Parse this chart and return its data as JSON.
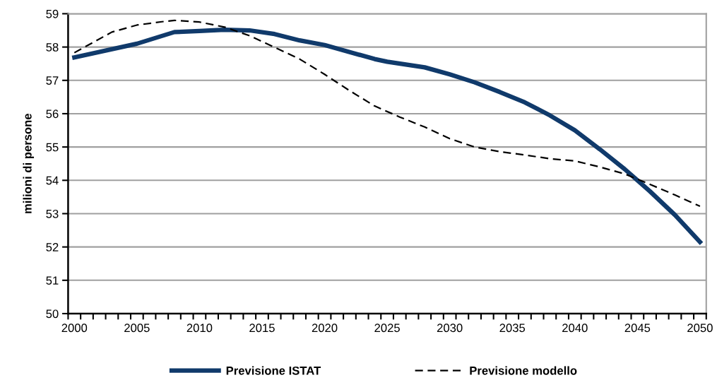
{
  "chart_data": {
    "type": "line",
    "ylabel": "milioni di persone",
    "xlim": [
      1999.5,
      2050.5
    ],
    "xticks": [
      {
        "value": 2000,
        "label": "2000"
      },
      {
        "value": 2005,
        "label": "2005"
      },
      {
        "value": 2010,
        "label": "2010"
      },
      {
        "value": 2015,
        "label": "2015"
      },
      {
        "value": 2020,
        "label": "2020"
      },
      {
        "value": 2025,
        "label": "2025"
      },
      {
        "value": 2030,
        "label": "2030"
      },
      {
        "value": 2035,
        "label": "2035"
      },
      {
        "value": 2040,
        "label": "2040"
      },
      {
        "value": 2045,
        "label": "2045"
      },
      {
        "value": 2050,
        "label": "2050"
      },
      {
        "value": 1999.5,
        "label": null
      },
      {
        "value": 2000.5,
        "label": null
      },
      {
        "value": 2001.5,
        "label": null
      },
      {
        "value": 2002.5,
        "label": null
      },
      {
        "value": 2003.5,
        "label": null
      },
      {
        "value": 2004.5,
        "label": null
      },
      {
        "value": 2005.5,
        "label": null
      },
      {
        "value": 2006.5,
        "label": null
      },
      {
        "value": 2007.5,
        "label": null
      },
      {
        "value": 2008.5,
        "label": null
      },
      {
        "value": 2009.5,
        "label": null
      },
      {
        "value": 2010.5,
        "label": null
      },
      {
        "value": 2011.5,
        "label": null
      },
      {
        "value": 2012.5,
        "label": null
      },
      {
        "value": 2013.5,
        "label": null
      },
      {
        "value": 2014.5,
        "label": null
      },
      {
        "value": 2015.5,
        "label": null
      },
      {
        "value": 2016.5,
        "label": null
      },
      {
        "value": 2017.5,
        "label": null
      },
      {
        "value": 2018.5,
        "label": null
      },
      {
        "value": 2019.5,
        "label": null
      },
      {
        "value": 2020.5,
        "label": null
      },
      {
        "value": 2021.5,
        "label": null
      },
      {
        "value": 2022.5,
        "label": null
      },
      {
        "value": 2023.5,
        "label": null
      },
      {
        "value": 2024.5,
        "label": null
      },
      {
        "value": 2025.5,
        "label": null
      },
      {
        "value": 2026.5,
        "label": null
      },
      {
        "value": 2027.5,
        "label": null
      },
      {
        "value": 2028.5,
        "label": null
      },
      {
        "value": 2029.5,
        "label": null
      },
      {
        "value": 2030.5,
        "label": null
      },
      {
        "value": 2031.5,
        "label": null
      },
      {
        "value": 2032.5,
        "label": null
      },
      {
        "value": 2033.5,
        "label": null
      },
      {
        "value": 2034.5,
        "label": null
      },
      {
        "value": 2035.5,
        "label": null
      },
      {
        "value": 2036.5,
        "label": null
      },
      {
        "value": 2037.5,
        "label": null
      },
      {
        "value": 2038.5,
        "label": null
      },
      {
        "value": 2039.5,
        "label": null
      },
      {
        "value": 2040.5,
        "label": null
      },
      {
        "value": 2041.5,
        "label": null
      },
      {
        "value": 2042.5,
        "label": null
      },
      {
        "value": 2043.5,
        "label": null
      },
      {
        "value": 2044.5,
        "label": null
      },
      {
        "value": 2045.5,
        "label": null
      },
      {
        "value": 2046.5,
        "label": null
      },
      {
        "value": 2047.5,
        "label": null
      },
      {
        "value": 2048.5,
        "label": null
      },
      {
        "value": 2049.5,
        "label": null
      },
      {
        "value": 2050.5,
        "label": null
      }
    ],
    "ylim": [
      50,
      59
    ],
    "yticks": [
      50,
      51,
      52,
      53,
      54,
      55,
      56,
      57,
      58,
      59
    ],
    "grid": "y",
    "legend": "bottom",
    "marker": "none",
    "series": [
      {
        "name": "Previsione ISTAT",
        "color": "#103a6b",
        "line_style": "solid",
        "x": [
          2000,
          2005,
          2008,
          2010,
          2012,
          2014,
          2016,
          2018,
          2020,
          2022,
          2024,
          2025,
          2028,
          2030,
          2032,
          2034,
          2036,
          2038,
          2040,
          2042,
          2044,
          2046,
          2048,
          2050
        ],
        "values": [
          57.69,
          58.1,
          58.45,
          58.48,
          58.52,
          58.5,
          58.39,
          58.2,
          58.06,
          57.85,
          57.64,
          57.56,
          57.39,
          57.18,
          56.94,
          56.65,
          56.34,
          55.95,
          55.5,
          54.93,
          54.33,
          53.67,
          52.96,
          52.15
        ]
      },
      {
        "name": "Previsione modello",
        "color": "#000000",
        "line_style": "dashed",
        "x": [
          2000,
          2003,
          2005,
          2007,
          2008,
          2010,
          2012,
          2014,
          2016,
          2018,
          2020,
          2022,
          2024,
          2026,
          2028,
          2030,
          2032,
          2034,
          2036,
          2038,
          2040,
          2042,
          2044,
          2046,
          2048,
          2050
        ],
        "values": [
          57.83,
          58.45,
          58.66,
          58.76,
          58.8,
          58.75,
          58.6,
          58.34,
          57.99,
          57.64,
          57.18,
          56.69,
          56.23,
          55.9,
          55.6,
          55.25,
          55.0,
          54.86,
          54.76,
          54.65,
          54.58,
          54.4,
          54.19,
          53.88,
          53.56,
          53.22
        ]
      }
    ]
  }
}
